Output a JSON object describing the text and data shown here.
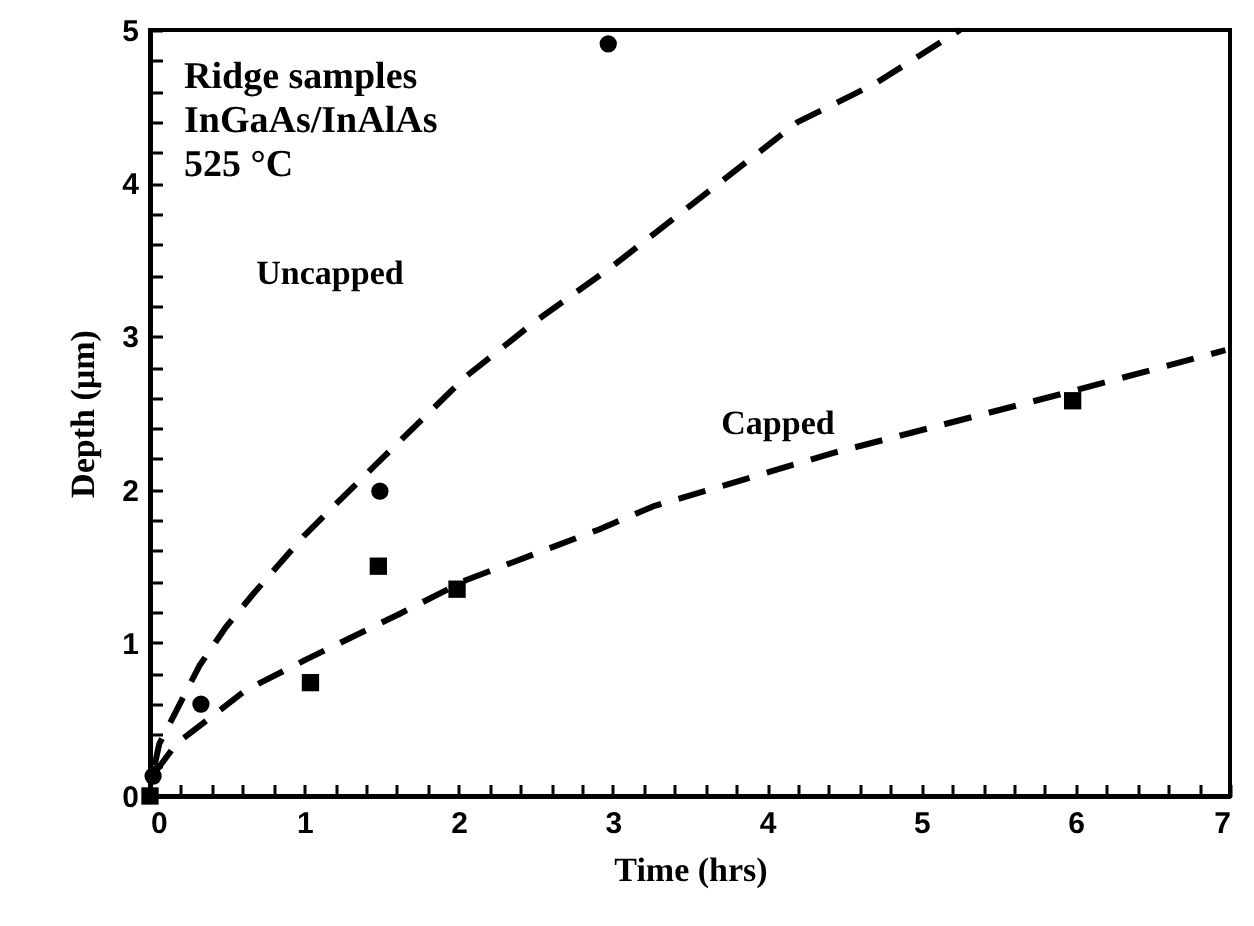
{
  "chart_data": {
    "type": "scatter",
    "xlabel": "Time  (hrs)",
    "ylabel": "Depth  (µm)",
    "xlim": [
      0,
      7
    ],
    "ylim": [
      0,
      5
    ],
    "xticks": [
      0,
      {
        "value": 0.2,
        "label": null
      },
      {
        "value": 0.4,
        "label": null
      },
      {
        "value": 0.6,
        "label": null
      },
      {
        "value": 0.8,
        "label": null
      },
      1,
      {
        "value": 1.2,
        "label": null
      },
      {
        "value": 1.4,
        "label": null
      },
      {
        "value": 1.6,
        "label": null
      },
      {
        "value": 1.8,
        "label": null
      },
      2,
      {
        "value": 2.2,
        "label": null
      },
      {
        "value": 2.4,
        "label": null
      },
      {
        "value": 2.6,
        "label": null
      },
      {
        "value": 2.8,
        "label": null
      },
      3,
      {
        "value": 3.2,
        "label": null
      },
      {
        "value": 3.4,
        "label": null
      },
      {
        "value": 3.6,
        "label": null
      },
      {
        "value": 3.8,
        "label": null
      },
      4,
      {
        "value": 4.2,
        "label": null
      },
      {
        "value": 4.4,
        "label": null
      },
      {
        "value": 4.6,
        "label": null
      },
      {
        "value": 4.8,
        "label": null
      },
      5,
      {
        "value": 5.2,
        "label": null
      },
      {
        "value": 5.4,
        "label": null
      },
      {
        "value": 5.6,
        "label": null
      },
      {
        "value": 5.8,
        "label": null
      },
      6,
      {
        "value": 6.2,
        "label": null
      },
      {
        "value": 6.4,
        "label": null
      },
      {
        "value": 6.6,
        "label": null
      },
      {
        "value": 6.8,
        "label": null
      },
      7
    ],
    "yticks": [
      0,
      {
        "value": 0.2,
        "label": null
      },
      {
        "value": 0.4,
        "label": null
      },
      {
        "value": 0.6,
        "label": null
      },
      {
        "value": 0.8,
        "label": null
      },
      1,
      {
        "value": 1.2,
        "label": null
      },
      {
        "value": 1.4,
        "label": null
      },
      {
        "value": 1.6,
        "label": null
      },
      {
        "value": 1.8,
        "label": null
      },
      2,
      {
        "value": 2.2,
        "label": null
      },
      {
        "value": 2.4,
        "label": null
      },
      {
        "value": 2.6,
        "label": null
      },
      {
        "value": 2.8,
        "label": null
      },
      3,
      {
        "value": 3.2,
        "label": null
      },
      {
        "value": 3.4,
        "label": null
      },
      {
        "value": 3.6,
        "label": null
      },
      {
        "value": 3.8,
        "label": null
      },
      4,
      {
        "value": 4.2,
        "label": null
      },
      {
        "value": 4.4,
        "label": null
      },
      {
        "value": 4.6,
        "label": null
      },
      {
        "value": 4.8,
        "label": null
      },
      5
    ],
    "series": [
      {
        "type": "line",
        "line_style": "dashed",
        "marker": "none",
        "color": "#000000",
        "x": [
          0.03,
          0.06,
          0.32,
          0.49,
          0.67,
          1.0,
          1.45,
          2.05,
          2.5,
          3.0,
          3.6,
          4.2,
          4.7,
          5.25
        ],
        "values": [
          0.2,
          0.34,
          0.85,
          1.1,
          1.32,
          1.7,
          2.15,
          2.74,
          3.1,
          3.46,
          3.93,
          4.4,
          4.65,
          5.0
        ]
      },
      {
        "type": "line",
        "line_style": "dashed",
        "marker": "none",
        "color": "#000000",
        "x": [
          0.03,
          0.17,
          0.62,
          1.01,
          1.62,
          2.05,
          2.91,
          3.26,
          4.43,
          5.93,
          6.97
        ],
        "values": [
          0.15,
          0.34,
          0.69,
          0.89,
          1.19,
          1.41,
          1.74,
          1.89,
          2.24,
          2.63,
          2.91
        ]
      },
      {
        "marker": "circle",
        "color": "#000000",
        "x": [
          0.02,
          0.33,
          1.49,
          2.97
        ],
        "values": [
          0.13,
          0.6,
          1.99,
          4.91
        ]
      },
      {
        "marker": "square",
        "color": "#000000",
        "x": [
          0,
          1.04,
          1.48,
          1.99,
          5.98
        ],
        "values": [
          0,
          0.74,
          1.5,
          1.35,
          2.58
        ]
      }
    ],
    "annotations": [
      "Ridge  samples",
      "InGaAs/InAlAs",
      "525  °C",
      "Uncapped",
      "Capped"
    ]
  }
}
